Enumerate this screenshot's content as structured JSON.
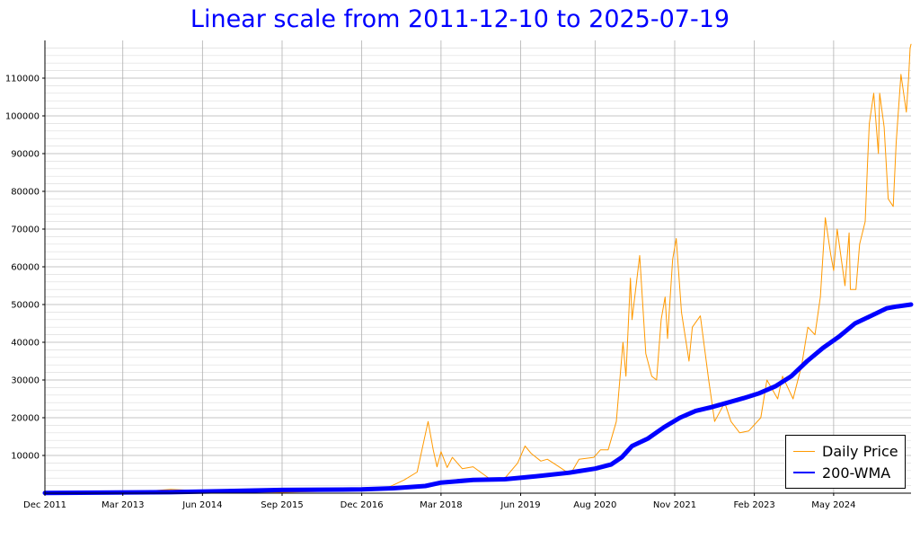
{
  "chart_data": {
    "type": "line",
    "title": "Linear scale from 2011-12-10 to 2025-07-19",
    "xlabel": "",
    "ylabel": "",
    "x_range": [
      "2011-12-10",
      "2025-07-19"
    ],
    "ylim": [
      0,
      120000
    ],
    "scale": "linear",
    "grid": true,
    "legend_position": "bottom-right",
    "x_tick_dates": [
      "2011-12-01",
      "2013-03-01",
      "2014-06-01",
      "2015-09-01",
      "2016-12-01",
      "2018-03-01",
      "2019-06-01",
      "2020-08-01",
      "2021-11-01",
      "2023-02-01",
      "2024-05-01"
    ],
    "x_tick_labels": [
      "Dec 2011",
      "Mar 2013",
      "Jun 2014",
      "Sep 2015",
      "Dec 2016",
      "Mar 2018",
      "Jun 2019",
      "Aug 2020",
      "Nov 2021",
      "Feb 2023",
      "May 2024"
    ],
    "y_ticks": [
      10000,
      20000,
      30000,
      40000,
      50000,
      60000,
      70000,
      80000,
      90000,
      100000,
      110000
    ],
    "y_tick_labels": [
      "10000",
      "20000",
      "30000",
      "40000",
      "50000",
      "60000",
      "70000",
      "80000",
      "90000",
      "100000",
      "110000"
    ],
    "series": [
      {
        "name": "Daily Price",
        "color": "#ff9900",
        "x": [
          "2011-12-10",
          "2013-03-01",
          "2013-12-01",
          "2014-06-01",
          "2015-09-01",
          "2016-12-01",
          "2017-05-01",
          "2017-08-01",
          "2017-10-15",
          "2017-12-17",
          "2018-01-15",
          "2018-02-06",
          "2018-03-01",
          "2018-04-05",
          "2018-05-05",
          "2018-07-01",
          "2018-09-01",
          "2018-11-20",
          "2018-12-15",
          "2019-03-01",
          "2019-05-15",
          "2019-06-26",
          "2019-08-01",
          "2019-09-25",
          "2019-11-01",
          "2020-01-01",
          "2020-03-12",
          "2020-05-01",
          "2020-07-25",
          "2020-09-01",
          "2020-10-15",
          "2020-12-01",
          "2021-01-08",
          "2021-01-25",
          "2021-02-20",
          "2021-03-01",
          "2021-04-14",
          "2021-05-19",
          "2021-06-22",
          "2021-07-20",
          "2021-08-15",
          "2021-09-07",
          "2021-09-21",
          "2021-10-20",
          "2021-11-10",
          "2021-12-10",
          "2022-01-22",
          "2022-02-10",
          "2022-03-28",
          "2022-05-15",
          "2022-06-18",
          "2022-08-15",
          "2022-09-20",
          "2022-11-09",
          "2022-12-31",
          "2023-03-10",
          "2023-04-14",
          "2023-06-15",
          "2023-07-13",
          "2023-09-11",
          "2023-10-31",
          "2023-12-05",
          "2024-01-15",
          "2024-02-15",
          "2024-03-14",
          "2024-04-15",
          "2024-05-01",
          "2024-05-21",
          "2024-07-05",
          "2024-07-29",
          "2024-08-05",
          "2024-09-06",
          "2024-09-27",
          "2024-10-29",
          "2024-11-12",
          "2024-11-22",
          "2024-12-17",
          "2025-01-13",
          "2025-01-20",
          "2025-02-15",
          "2025-03-10",
          "2025-04-08",
          "2025-04-25",
          "2025-05-22",
          "2025-06-22",
          "2025-07-05",
          "2025-07-14",
          "2025-07-19"
        ],
        "values": [
          3,
          35,
          1000,
          600,
          230,
          750,
          1500,
          3500,
          5600,
          19000,
          11500,
          7000,
          11000,
          6800,
          9500,
          6500,
          7000,
          4300,
          3500,
          3900,
          8000,
          12500,
          10500,
          8500,
          9000,
          7200,
          5000,
          9000,
          9500,
          11500,
          11500,
          19000,
          40000,
          31000,
          57000,
          46000,
          63000,
          37000,
          31000,
          30000,
          46000,
          52000,
          41000,
          62000,
          67500,
          48000,
          35000,
          44000,
          47000,
          30000,
          19000,
          24000,
          19000,
          16000,
          16500,
          20000,
          30000,
          25000,
          31000,
          25000,
          34000,
          44000,
          42000,
          52000,
          73000,
          63000,
          59000,
          70000,
          55000,
          69000,
          54000,
          54000,
          66000,
          72000,
          88000,
          98000,
          106000,
          90000,
          106000,
          97000,
          78000,
          76000,
          93000,
          111000,
          101000,
          110000,
          118000,
          119000
        ]
      },
      {
        "name": "200-WMA",
        "color": "#0000ff",
        "x": [
          "2011-12-10",
          "2013-12-01",
          "2015-09-01",
          "2016-12-01",
          "2017-06-01",
          "2017-12-01",
          "2018-03-01",
          "2018-09-01",
          "2019-03-01",
          "2019-09-01",
          "2020-03-01",
          "2020-08-01",
          "2020-11-01",
          "2021-01-01",
          "2021-03-01",
          "2021-06-01",
          "2021-09-01",
          "2021-12-01",
          "2022-03-01",
          "2022-06-01",
          "2022-09-01",
          "2022-12-01",
          "2023-03-01",
          "2023-06-01",
          "2023-09-01",
          "2023-12-01",
          "2024-03-01",
          "2024-06-01",
          "2024-09-01",
          "2024-12-01",
          "2025-03-01",
          "2025-05-01",
          "2025-07-19"
        ],
        "values": [
          60,
          260,
          850,
          1000,
          1300,
          1900,
          2800,
          3500,
          3700,
          4500,
          5400,
          6500,
          7600,
          9500,
          12500,
          14500,
          17500,
          20000,
          21800,
          22800,
          24000,
          25200,
          26500,
          28300,
          31000,
          35000,
          38500,
          41500,
          45000,
          47000,
          49000,
          49500,
          50000
        ]
      }
    ]
  },
  "legend": {
    "entries": [
      {
        "label": "Daily Price",
        "color": "#ff9900"
      },
      {
        "label": "200-WMA",
        "color": "#0000ff"
      }
    ]
  }
}
